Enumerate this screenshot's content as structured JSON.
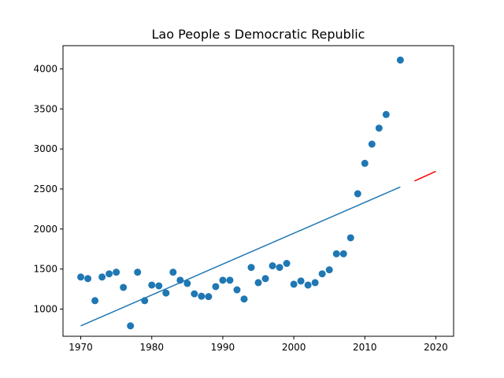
{
  "chart_data": {
    "type": "scatter",
    "title": "Lao People s Democratic Republic",
    "xlabel": "",
    "ylabel": "",
    "xlim": [
      1967.5,
      2022.5
    ],
    "ylim": [
      660,
      4290
    ],
    "x_ticks": [
      1970,
      1980,
      1990,
      2000,
      2010,
      2020
    ],
    "y_ticks": [
      1000,
      1500,
      2000,
      2500,
      3000,
      3500,
      4000
    ],
    "grid": false,
    "legend": "none",
    "colors": {
      "points": "#1f77b4",
      "trend": "#1f77b4",
      "forecast": "#ff0000"
    },
    "series": [
      {
        "type": "scatter",
        "x": [
          1970,
          1971,
          1972,
          1973,
          1974,
          1975,
          1976,
          1977,
          1978,
          1979,
          1980,
          1981,
          1982,
          1983,
          1984,
          1985,
          1986,
          1987,
          1988,
          1989,
          1990,
          1991,
          1992,
          1993,
          1994,
          1995,
          1996,
          1997,
          1998,
          1999,
          2000,
          2001,
          2002,
          2003,
          2004,
          2005,
          2006,
          2007,
          2008,
          2009,
          2010,
          2011,
          2012,
          2013,
          2015
        ],
        "y": [
          1400,
          1380,
          1105,
          1400,
          1440,
          1460,
          1270,
          790,
          1460,
          1105,
          1300,
          1290,
          1200,
          1460,
          1360,
          1320,
          1190,
          1160,
          1155,
          1280,
          1360,
          1360,
          1240,
          1125,
          1520,
          1330,
          1380,
          1540,
          1520,
          1570,
          1310,
          1350,
          1300,
          1330,
          1440,
          1490,
          1690,
          1690,
          1890,
          2440,
          2820,
          3060,
          3260,
          3430,
          4110
        ]
      },
      {
        "type": "line",
        "x": [
          1970,
          2015
        ],
        "y": [
          790,
          2525
        ]
      },
      {
        "type": "line",
        "x": [
          2017,
          2020
        ],
        "y": [
          2600,
          2720
        ]
      }
    ]
  }
}
